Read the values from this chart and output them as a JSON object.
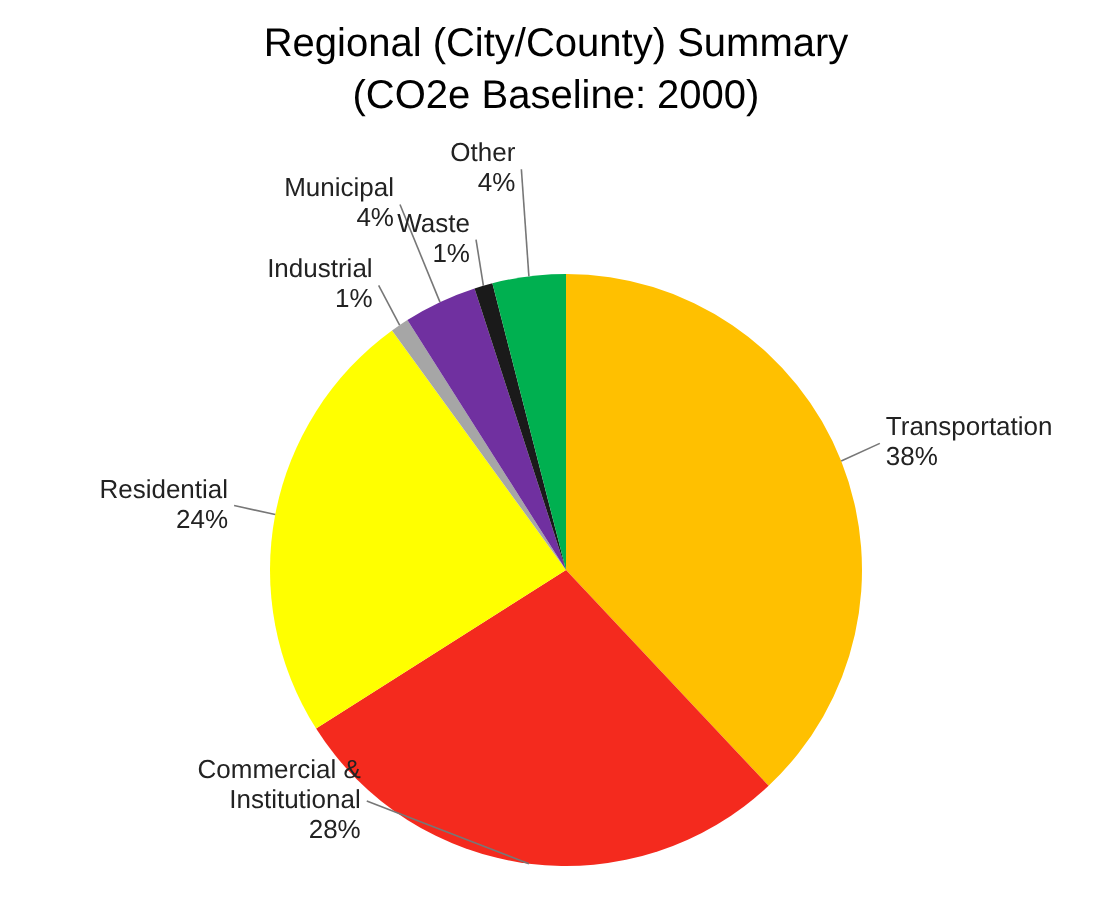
{
  "chart_data": {
    "type": "pie",
    "title": "Regional (City/County) Summary",
    "subtitle": "(CO2e Baseline: 2000)",
    "categories": [
      "Transportation",
      "Commercial & Institutional",
      "Residential",
      "Industrial",
      "Municipal",
      "Waste",
      "Other"
    ],
    "values": [
      38,
      28,
      24,
      1,
      4,
      1,
      4
    ],
    "colors": [
      "#ffc000",
      "#f42a1e",
      "#ffff00",
      "#a6a6a6",
      "#7030a0",
      "#1a1a1a",
      "#00b050"
    ],
    "value_labels": [
      "38%",
      "28%",
      "24%",
      "1%",
      "4%",
      "1%",
      "4%"
    ]
  }
}
